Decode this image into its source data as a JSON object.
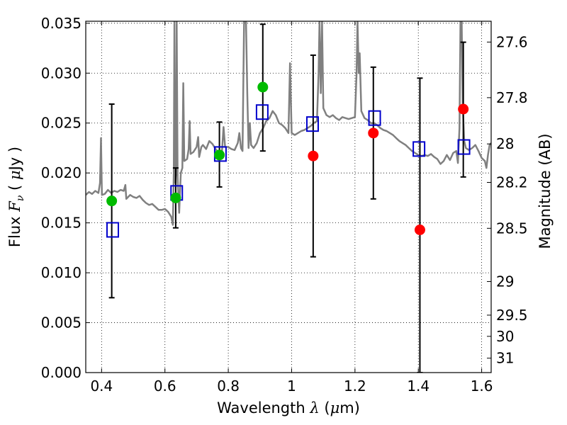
{
  "chart_data": {
    "type": "scatter",
    "xlabel": {
      "text": "Wavelength",
      "symbol": "λ",
      "unit_open": " (",
      "unit_mu": "μ",
      "unit_rest": "m)"
    },
    "ylabel": {
      "text": "Flux",
      "symbol": "F",
      "sub": "ν",
      "unit_open": "( ",
      "unit_mu": "μ",
      "unit_rest": "Jy )"
    },
    "y2label": "Magnitude (AB)",
    "xlim": [
      0.35,
      1.63
    ],
    "ylim": [
      0.0,
      0.0352
    ],
    "x_ticks": [
      {
        "v": 0.4,
        "label": "0.4"
      },
      {
        "v": 0.6,
        "label": "0.6"
      },
      {
        "v": 0.8,
        "label": "0.8"
      },
      {
        "v": 1.0,
        "label": "1"
      },
      {
        "v": 1.2,
        "label": "1.2"
      },
      {
        "v": 1.4,
        "label": "1.4"
      },
      {
        "v": 1.6,
        "label": "1.6"
      }
    ],
    "y_ticks": [
      {
        "v": 0.0,
        "label": "0.000"
      },
      {
        "v": 0.005,
        "label": "0.005"
      },
      {
        "v": 0.01,
        "label": "0.010"
      },
      {
        "v": 0.015,
        "label": "0.015"
      },
      {
        "v": 0.02,
        "label": "0.020"
      },
      {
        "v": 0.025,
        "label": "0.025"
      },
      {
        "v": 0.03,
        "label": "0.030"
      },
      {
        "v": 0.035,
        "label": "0.035"
      }
    ],
    "y2_ticks": [
      "27.6",
      "27.8",
      "28",
      "28.2",
      "28.5",
      "29",
      "29.5",
      "30",
      "31"
    ],
    "grid": true,
    "colors": {
      "spectrum": "#808080",
      "observed": "#ff0000",
      "observed_alt": "#00bb00",
      "model": "#0000cc",
      "errorbar": "#000000"
    },
    "series": [
      {
        "marker": "square",
        "color": "#0000cc",
        "points": [
          {
            "x": 0.435,
            "y": 0.0143
          },
          {
            "x": 0.637,
            "y": 0.018
          },
          {
            "x": 0.775,
            "y": 0.0219
          },
          {
            "x": 0.907,
            "y": 0.0261
          },
          {
            "x": 1.066,
            "y": 0.0249
          },
          {
            "x": 1.262,
            "y": 0.0255
          },
          {
            "x": 1.402,
            "y": 0.0224
          },
          {
            "x": 1.544,
            "y": 0.0226
          }
        ]
      },
      {
        "marker": "circle",
        "points": [
          {
            "x": 0.432,
            "y": 0.0172,
            "color": "#00bb00",
            "err": [
              0.0075,
              0.0269
            ]
          },
          {
            "x": 0.634,
            "y": 0.0175,
            "color": "#00bb00",
            "err": [
              0.0145,
              0.0205
            ]
          },
          {
            "x": 0.772,
            "y": 0.0218,
            "color": "#00bb00",
            "err": [
              0.0186,
              0.0251
            ]
          },
          {
            "x": 0.909,
            "y": 0.0286,
            "color": "#00bb00",
            "err": [
              0.0222,
              0.0349
            ]
          },
          {
            "x": 1.068,
            "y": 0.0217,
            "color": "#ff0000",
            "err": [
              0.0116,
              0.0318
            ]
          },
          {
            "x": 1.258,
            "y": 0.024,
            "color": "#ff0000",
            "err": [
              0.0174,
              0.0306
            ]
          },
          {
            "x": 1.405,
            "y": 0.0143,
            "color": "#ff0000",
            "err": [
              0.0,
              0.0295
            ]
          },
          {
            "x": 1.542,
            "y": 0.0264,
            "color": "#ff0000",
            "err": [
              0.0196,
              0.0331
            ]
          }
        ]
      }
    ],
    "spectrum": [
      [
        0.35,
        0.0178
      ],
      [
        0.36,
        0.0181
      ],
      [
        0.37,
        0.0179
      ],
      [
        0.38,
        0.0182
      ],
      [
        0.39,
        0.018
      ],
      [
        0.395,
        0.019
      ],
      [
        0.398,
        0.0235
      ],
      [
        0.401,
        0.0178
      ],
      [
        0.41,
        0.0179
      ],
      [
        0.42,
        0.0183
      ],
      [
        0.43,
        0.018
      ],
      [
        0.44,
        0.0182
      ],
      [
        0.45,
        0.0181
      ],
      [
        0.46,
        0.0183
      ],
      [
        0.47,
        0.0182
      ],
      [
        0.475,
        0.0188
      ],
      [
        0.478,
        0.0174
      ],
      [
        0.49,
        0.0178
      ],
      [
        0.5,
        0.0176
      ],
      [
        0.51,
        0.0175
      ],
      [
        0.52,
        0.0177
      ],
      [
        0.53,
        0.0173
      ],
      [
        0.54,
        0.017
      ],
      [
        0.55,
        0.0168
      ],
      [
        0.56,
        0.0169
      ],
      [
        0.57,
        0.0166
      ],
      [
        0.58,
        0.0163
      ],
      [
        0.59,
        0.0163
      ],
      [
        0.6,
        0.0164
      ],
      [
        0.61,
        0.0161
      ],
      [
        0.62,
        0.0156
      ],
      [
        0.625,
        0.0148
      ],
      [
        0.628,
        0.02
      ],
      [
        0.63,
        0.0352
      ],
      [
        0.632,
        0.019
      ],
      [
        0.635,
        0.02
      ],
      [
        0.637,
        0.0352
      ],
      [
        0.64,
        0.0195
      ],
      [
        0.645,
        0.016
      ],
      [
        0.65,
        0.02
      ],
      [
        0.655,
        0.0205
      ],
      [
        0.658,
        0.029
      ],
      [
        0.661,
        0.0212
      ],
      [
        0.67,
        0.0214
      ],
      [
        0.675,
        0.0224
      ],
      [
        0.678,
        0.0252
      ],
      [
        0.681,
        0.0219
      ],
      [
        0.69,
        0.0221
      ],
      [
        0.7,
        0.0226
      ],
      [
        0.705,
        0.0236
      ],
      [
        0.708,
        0.0216
      ],
      [
        0.715,
        0.0226
      ],
      [
        0.72,
        0.0228
      ],
      [
        0.73,
        0.0224
      ],
      [
        0.74,
        0.0232
      ],
      [
        0.75,
        0.0229
      ],
      [
        0.76,
        0.0224
      ],
      [
        0.765,
        0.0222
      ],
      [
        0.77,
        0.0219
      ],
      [
        0.78,
        0.0222
      ],
      [
        0.785,
        0.0246
      ],
      [
        0.79,
        0.0226
      ],
      [
        0.8,
        0.0226
      ],
      [
        0.81,
        0.0224
      ],
      [
        0.82,
        0.0223
      ],
      [
        0.83,
        0.023
      ],
      [
        0.835,
        0.024
      ],
      [
        0.84,
        0.0225
      ],
      [
        0.845,
        0.0222
      ],
      [
        0.848,
        0.03
      ],
      [
        0.85,
        0.0352
      ],
      [
        0.852,
        0.0352
      ],
      [
        0.856,
        0.0352
      ],
      [
        0.86,
        0.028
      ],
      [
        0.864,
        0.0225
      ],
      [
        0.868,
        0.025
      ],
      [
        0.872,
        0.0228
      ],
      [
        0.88,
        0.0225
      ],
      [
        0.89,
        0.023
      ],
      [
        0.9,
        0.024
      ],
      [
        0.91,
        0.0245
      ],
      [
        0.92,
        0.0252
      ],
      [
        0.93,
        0.0255
      ],
      [
        0.94,
        0.0262
      ],
      [
        0.95,
        0.0258
      ],
      [
        0.96,
        0.025
      ],
      [
        0.97,
        0.0248
      ],
      [
        0.98,
        0.0245
      ],
      [
        0.99,
        0.024
      ],
      [
        0.995,
        0.031
      ],
      [
        1.0,
        0.024
      ],
      [
        1.01,
        0.0238
      ],
      [
        1.02,
        0.024
      ],
      [
        1.03,
        0.0242
      ],
      [
        1.04,
        0.0243
      ],
      [
        1.05,
        0.0245
      ],
      [
        1.06,
        0.0247
      ],
      [
        1.07,
        0.025
      ],
      [
        1.08,
        0.0252
      ],
      [
        1.085,
        0.03
      ],
      [
        1.088,
        0.0352
      ],
      [
        1.092,
        0.028
      ],
      [
        1.096,
        0.0352
      ],
      [
        1.1,
        0.0265
      ],
      [
        1.11,
        0.0258
      ],
      [
        1.12,
        0.0256
      ],
      [
        1.13,
        0.0258
      ],
      [
        1.14,
        0.0255
      ],
      [
        1.15,
        0.0253
      ],
      [
        1.16,
        0.0256
      ],
      [
        1.17,
        0.0255
      ],
      [
        1.18,
        0.0254
      ],
      [
        1.19,
        0.0255
      ],
      [
        1.2,
        0.0256
      ],
      [
        1.205,
        0.03
      ],
      [
        1.208,
        0.0352
      ],
      [
        1.212,
        0.03
      ],
      [
        1.215,
        0.032
      ],
      [
        1.22,
        0.0262
      ],
      [
        1.23,
        0.0255
      ],
      [
        1.24,
        0.0253
      ],
      [
        1.25,
        0.025
      ],
      [
        1.26,
        0.025
      ],
      [
        1.27,
        0.0248
      ],
      [
        1.28,
        0.0245
      ],
      [
        1.29,
        0.0243
      ],
      [
        1.3,
        0.0242
      ],
      [
        1.31,
        0.024
      ],
      [
        1.32,
        0.0238
      ],
      [
        1.33,
        0.0235
      ],
      [
        1.34,
        0.0232
      ],
      [
        1.35,
        0.023
      ],
      [
        1.36,
        0.0228
      ],
      [
        1.37,
        0.0225
      ],
      [
        1.38,
        0.0222
      ],
      [
        1.39,
        0.022
      ],
      [
        1.4,
        0.0218
      ],
      [
        1.41,
        0.0217
      ],
      [
        1.42,
        0.0218
      ],
      [
        1.43,
        0.0217
      ],
      [
        1.44,
        0.0219
      ],
      [
        1.45,
        0.0216
      ],
      [
        1.46,
        0.0214
      ],
      [
        1.47,
        0.0209
      ],
      [
        1.48,
        0.0212
      ],
      [
        1.49,
        0.0218
      ],
      [
        1.5,
        0.0213
      ],
      [
        1.51,
        0.022
      ],
      [
        1.52,
        0.0222
      ],
      [
        1.525,
        0.021
      ],
      [
        1.53,
        0.0245
      ],
      [
        1.533,
        0.0352
      ],
      [
        1.537,
        0.0352
      ],
      [
        1.54,
        0.027
      ],
      [
        1.545,
        0.0232
      ],
      [
        1.55,
        0.0225
      ],
      [
        1.56,
        0.0223
      ],
      [
        1.57,
        0.0225
      ],
      [
        1.58,
        0.0228
      ],
      [
        1.59,
        0.0222
      ],
      [
        1.6,
        0.0215
      ],
      [
        1.61,
        0.0212
      ],
      [
        1.615,
        0.0205
      ],
      [
        1.62,
        0.0218
      ],
      [
        1.625,
        0.0228
      ],
      [
        1.63,
        0.023
      ]
    ]
  }
}
